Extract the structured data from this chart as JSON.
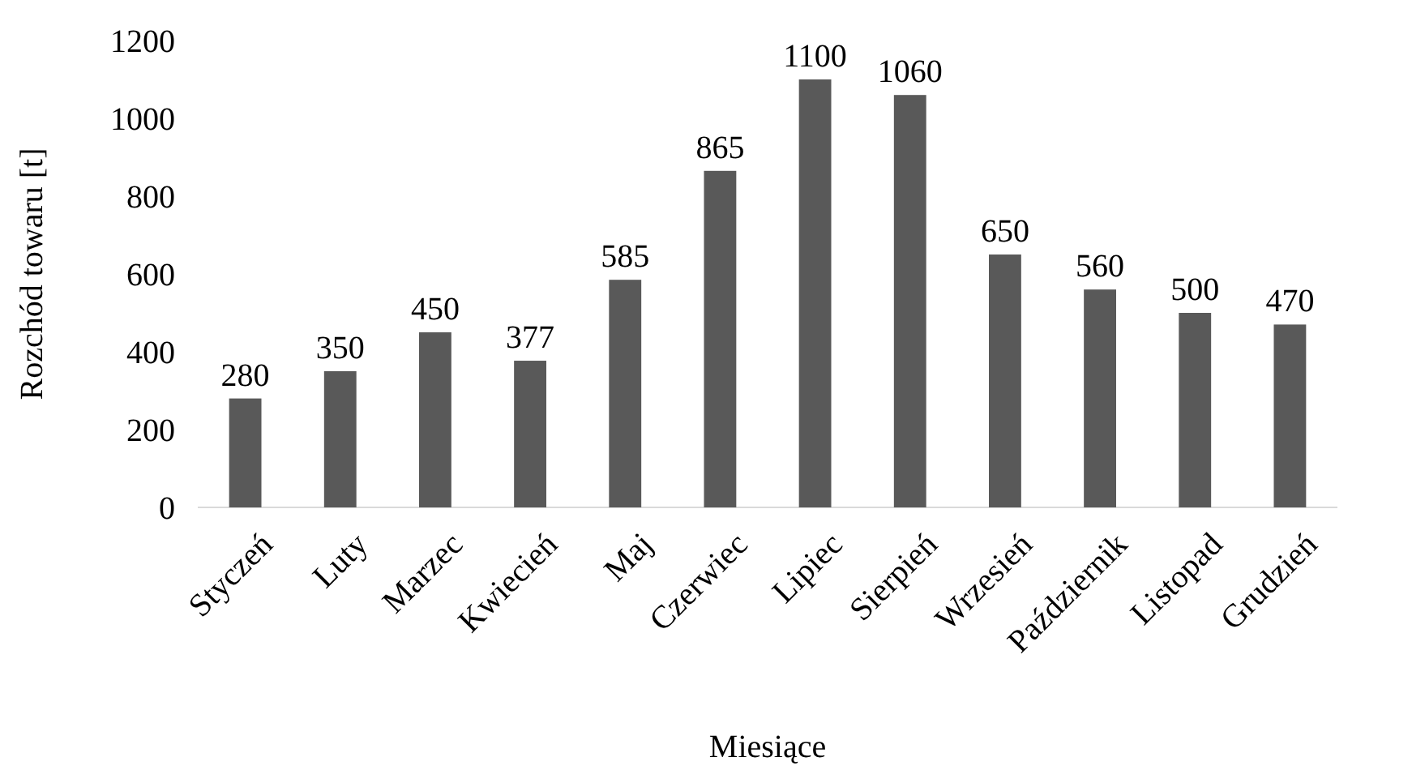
{
  "chart_data": {
    "type": "bar",
    "xlabel": "Miesiące",
    "ylabel": "Rozchód towaru [t]",
    "categories": [
      "Styczeń",
      "Luty",
      "Marzec",
      "Kwiecień",
      "Maj",
      "Czerwiec",
      "Lipiec",
      "Sierpień",
      "Wrzesień",
      "Październik",
      "Listopad",
      "Grudzień"
    ],
    "values": [
      280,
      350,
      450,
      377,
      585,
      865,
      1100,
      1060,
      650,
      560,
      500,
      470
    ],
    "color": "#595959",
    "ylim": [
      0,
      1200
    ],
    "yticks": [
      0,
      200,
      400,
      600,
      800,
      1000,
      1200
    ],
    "grid": false,
    "data_labels": true
  }
}
